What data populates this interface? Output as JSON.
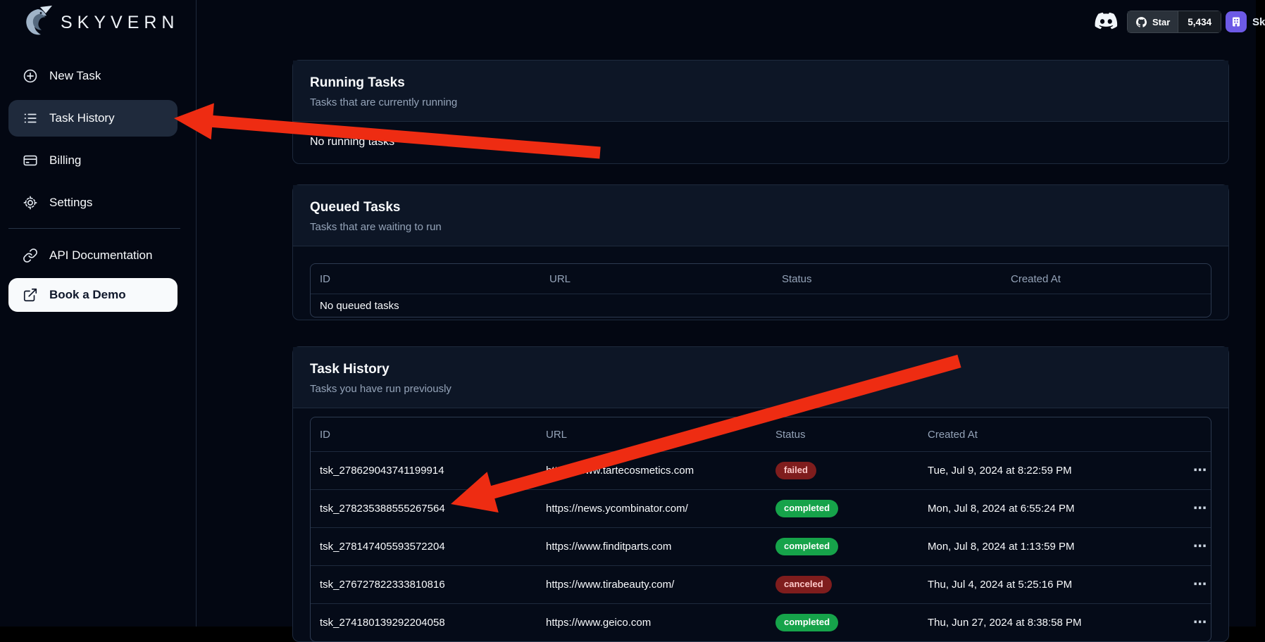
{
  "brand": {
    "name": "SKYVERN"
  },
  "topbar": {
    "github": {
      "label": "Star",
      "count": "5,434"
    },
    "user_label": "Sk"
  },
  "sidebar": {
    "primary": [
      {
        "label": "New Task"
      },
      {
        "label": "Task History"
      },
      {
        "label": "Billing"
      },
      {
        "label": "Settings"
      }
    ],
    "secondary": [
      {
        "label": "API Documentation"
      },
      {
        "label": "Book a Demo"
      }
    ]
  },
  "running_card": {
    "title": "Running Tasks",
    "subtitle": "Tasks that are currently running",
    "empty": "No running tasks"
  },
  "queued_card": {
    "title": "Queued Tasks",
    "subtitle": "Tasks that are waiting to run",
    "columns": [
      "ID",
      "URL",
      "Status",
      "Created At"
    ],
    "empty": "No queued tasks"
  },
  "history_card": {
    "title": "Task History",
    "subtitle": "Tasks you have run previously",
    "columns": [
      "ID",
      "URL",
      "Status",
      "Created At"
    ],
    "row_actions_label": "⋯",
    "rows": [
      {
        "id": "tsk_278629043741199914",
        "url": "https://www.tartecosmetics.com",
        "status": "failed",
        "created_at": "Tue, Jul 9, 2024 at 8:22:59 PM"
      },
      {
        "id": "tsk_278235388555267564",
        "url": "https://news.ycombinator.com/",
        "status": "completed",
        "created_at": "Mon, Jul 8, 2024 at 6:55:24 PM"
      },
      {
        "id": "tsk_278147405593572204",
        "url": "https://www.finditparts.com",
        "status": "completed",
        "created_at": "Mon, Jul 8, 2024 at 1:13:59 PM"
      },
      {
        "id": "tsk_276727822333810816",
        "url": "https://www.tirabeauty.com/",
        "status": "canceled",
        "created_at": "Thu, Jul 4, 2024 at 5:25:16 PM"
      },
      {
        "id": "tsk_274180139292204058",
        "url": "https://www.geico.com",
        "status": "completed",
        "created_at": "Thu, Jun 27, 2024 at 8:38:58 PM"
      }
    ]
  },
  "icons": {
    "logo": "skyvern-dragon",
    "new_task": "plus-circle",
    "task_history": "list",
    "billing": "credit-card",
    "settings": "gear",
    "api_docs": "link",
    "book_demo": "external-link",
    "community": "discord-logo",
    "repo": "github-octocat",
    "avatar": "organization-building",
    "row_actions": "ellipsis-horizontal"
  },
  "colors": {
    "page_bg": "#030712",
    "card_header_bg": "#0d1626",
    "card_body_bg": "#050b18",
    "border": "#2d3a50",
    "border_soft": "#1e2a3d",
    "text_primary": "#f8fafc",
    "text_secondary": "#94a3b8",
    "active_item_bg": "#1f2a3c",
    "white_btn_bg": "#f8fafc",
    "white_btn_text": "#0f172a",
    "badge_green": "#16a34a",
    "badge_red_bg": "#7f1d1d",
    "badge_red_text": "#fecaca",
    "arrow_red": "#ee2c12",
    "avatar_purple": "#6d5ae6",
    "github_btn_bg": "#2a313a",
    "github_count_bg": "#161b22",
    "github_border": "#3d444d"
  }
}
